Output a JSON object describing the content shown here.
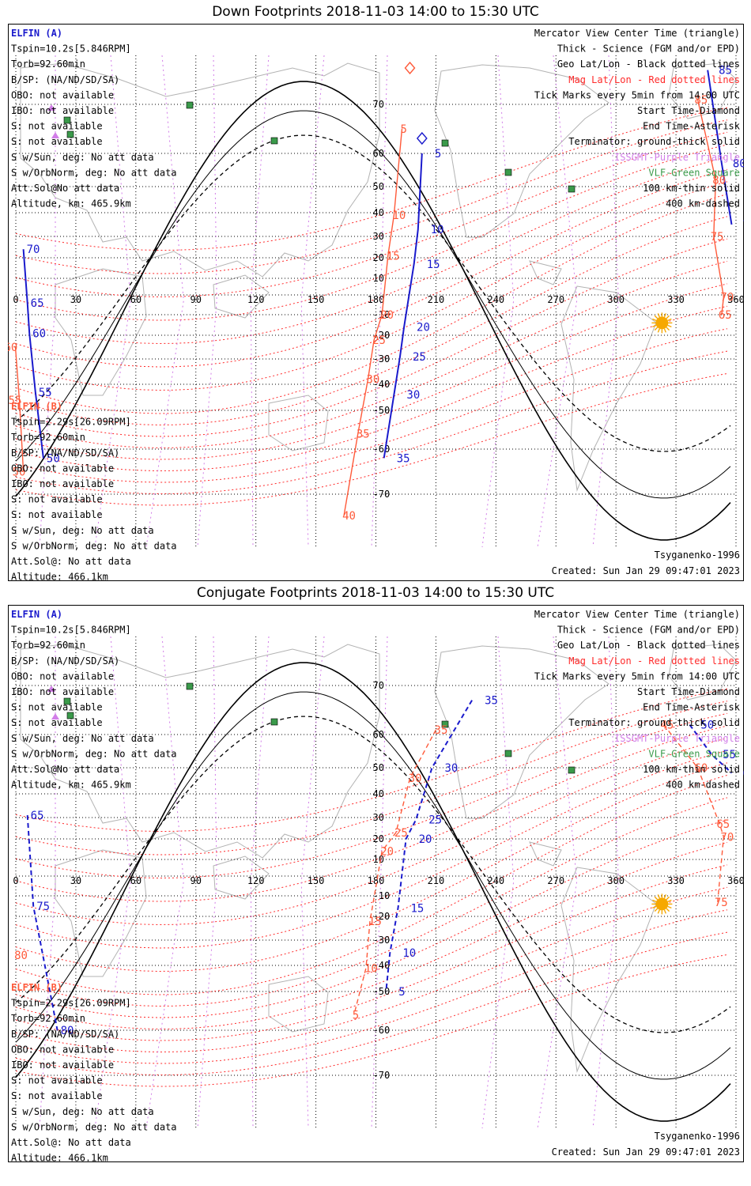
{
  "colors": {
    "blue": "#1a1acc",
    "red": "#ff5a3a",
    "grid_red": "#ff2a2a",
    "purple": "#d27ee8",
    "green": "#3a9a4a",
    "sun": "#f6a800",
    "land": "#b3b3b3"
  },
  "legend_right": [
    {
      "text": "Mercator View Center Time (triangle)",
      "color": "#000000"
    },
    {
      "text": "Thick - Science (FGM and/or EPD)",
      "color": "#000000"
    },
    {
      "text": "Geo Lat/Lon - Black dotted lines",
      "color": "#000000"
    },
    {
      "text": "Mag Lat/Lon - Red dotted lines",
      "color": "#ff2a2a"
    },
    {
      "text": "Tick Marks every 5min from 14:00 UTC",
      "color": "#000000"
    },
    {
      "text": "Start Time-Diamond",
      "color": "#000000"
    },
    {
      "text": "End Time-Asterisk",
      "color": "#000000"
    },
    {
      "text": "Terminator: ground-thick solid",
      "color": "#000000"
    },
    {
      "text": "ISSGMT-Purple Triangle",
      "color": "#d27ee8"
    },
    {
      "text": "VLF-Green Square",
      "color": "#3a9a4a"
    },
    {
      "text": "100 km-thin solid",
      "color": "#000000"
    },
    {
      "text": "400 km-dashed",
      "color": "#000000"
    }
  ],
  "elfin_a": {
    "name": "ELFIN (A)",
    "lines": [
      "Tspin=10.2s[5.846RPM]",
      "Torb=92.60min",
      "B/SP: (NA/ND/SD/SA)",
      "OBO: not available",
      "IBO: not available",
      "S: not available",
      "S: not available",
      "S w/Sun, deg: No att data",
      "S w/OrbNorm, deg: No att data",
      "Att.Sol@No att data",
      "Altitude, km: 465.9km"
    ]
  },
  "elfin_b": {
    "name": "ELFIN (B)",
    "lines": [
      "Tspin=2.29s[26.09RPM]",
      "Torb=92.60min",
      "B/SP: (NA/ND/SD/SA)",
      "OBO: not available",
      "IBO: not available",
      "S: not available",
      "S: not available",
      "S w/Sun, deg: No att data",
      "S w/OrbNorm, deg: No att data",
      "Att.Sol@: No att data",
      "Altitude: 466.1km"
    ]
  },
  "model": "Tsyganenko-1996",
  "created": "Created: Sun Jan 29 09:47:01 2023",
  "lon_ticks": [
    0,
    30,
    60,
    90,
    120,
    150,
    180,
    210,
    240,
    270,
    300,
    330,
    360
  ],
  "lat_ticks": [
    70,
    60,
    50,
    40,
    30,
    20,
    10,
    -10,
    -20,
    -30,
    -40,
    -50,
    -60,
    -70
  ],
  "chart_data": [
    {
      "type": "scatter",
      "title": "Down Footprints 2018-11-03 14:00 to 15:30 UTC",
      "xlabel": "",
      "ylabel": "",
      "xlim": [
        0,
        360
      ],
      "ylim": [
        -80,
        80
      ],
      "series": [
        {
          "name": "ELFIN (A)",
          "color": "#1a1acc",
          "labels": [
            {
              "text": "5",
              "lon": 207,
              "lat": 60
            },
            {
              "text": "10",
              "lon": 205,
              "lat": 33
            },
            {
              "text": "15",
              "lon": 203,
              "lat": 17
            },
            {
              "text": "20",
              "lon": 198,
              "lat": -16
            },
            {
              "text": "25",
              "lon": 196,
              "lat": -29
            },
            {
              "text": "30",
              "lon": 193,
              "lat": -44
            },
            {
              "text": "35",
              "lon": 188,
              "lat": -62
            },
            {
              "text": "85",
              "lon": 349,
              "lat": 77
            },
            {
              "text": "80",
              "lon": 356,
              "lat": 57
            },
            {
              "text": "75",
              "lon": 361,
              "lat": 35
            },
            {
              "text": "70",
              "lon": 3,
              "lat": 24
            },
            {
              "text": "65",
              "lon": 5,
              "lat": -4
            },
            {
              "text": "60",
              "lon": 6,
              "lat": -19
            },
            {
              "text": "55",
              "lon": 9,
              "lat": -43
            },
            {
              "text": "50",
              "lon": 13,
              "lat": -62
            }
          ]
        },
        {
          "name": "ELFIN (B)",
          "color": "#ff5a3a",
          "labels": [
            {
              "text": "5",
              "lon": 197,
              "lat": 65
            },
            {
              "text": "10",
              "lon": 193,
              "lat": 39
            },
            {
              "text": "15",
              "lon": 190,
              "lat": 21
            },
            {
              "text": "20",
              "lon": 187,
              "lat": -10
            },
            {
              "text": "25",
              "lon": 183,
              "lat": -22
            },
            {
              "text": "30",
              "lon": 180,
              "lat": -38
            },
            {
              "text": "35",
              "lon": 175,
              "lat": -56
            },
            {
              "text": "40",
              "lon": 168,
              "lat": -74
            },
            {
              "text": "85",
              "lon": 344,
              "lat": 71
            },
            {
              "text": "80",
              "lon": 353,
              "lat": 52
            },
            {
              "text": "75",
              "lon": 352,
              "lat": 30
            },
            {
              "text": "70",
              "lon": 357,
              "lat": -1
            },
            {
              "text": "65",
              "lon": 356,
              "lat": -10
            },
            {
              "text": "60",
              "lon": -1,
              "lat": -25
            },
            {
              "text": "55",
              "lon": 1,
              "lat": -46
            },
            {
              "text": "50",
              "lon": 3,
              "lat": -65
            }
          ]
        }
      ]
    },
    {
      "type": "scatter",
      "title": "Conjugate Footprints 2018-11-03 14:00 to 15:30 UTC",
      "xlabel": "",
      "ylabel": "",
      "xlim": [
        0,
        360
      ],
      "ylim": [
        -80,
        80
      ],
      "series": [
        {
          "name": "ELFIN (A)",
          "color": "#1a1acc",
          "labels": [
            {
              "text": "5",
              "lon": 189,
              "lat": -50
            },
            {
              "text": "10",
              "lon": 191,
              "lat": -35
            },
            {
              "text": "15",
              "lon": 195,
              "lat": -16
            },
            {
              "text": "20",
              "lon": 199,
              "lat": 20
            },
            {
              "text": "25",
              "lon": 204,
              "lat": 29
            },
            {
              "text": "30",
              "lon": 212,
              "lat": 50
            },
            {
              "text": "35",
              "lon": 232,
              "lat": 67
            },
            {
              "text": "50",
              "lon": 340,
              "lat": 62
            },
            {
              "text": "55",
              "lon": 351,
              "lat": 54
            },
            {
              "text": "60",
              "lon": 361,
              "lat": 48
            },
            {
              "text": "65",
              "lon": 5,
              "lat": 31
            },
            {
              "text": "75",
              "lon": 8,
              "lat": -15
            },
            {
              "text": "80",
              "lon": 20,
              "lat": -60
            }
          ]
        },
        {
          "name": "ELFIN (B)",
          "color": "#ff5a3a",
          "labels": [
            {
              "text": "5",
              "lon": 173,
              "lat": -56
            },
            {
              "text": "10",
              "lon": 179,
              "lat": -41
            },
            {
              "text": "15",
              "lon": 181,
              "lat": -22
            },
            {
              "text": "20",
              "lon": 187,
              "lat": 14
            },
            {
              "text": "25",
              "lon": 194,
              "lat": 23
            },
            {
              "text": "30",
              "lon": 201,
              "lat": 46
            },
            {
              "text": "35",
              "lon": 214,
              "lat": 61
            },
            {
              "text": "45",
              "lon": 327,
              "lat": 62
            },
            {
              "text": "60",
              "lon": 344,
              "lat": 50
            },
            {
              "text": "65",
              "lon": 355,
              "lat": 27
            },
            {
              "text": "70",
              "lon": 357,
              "lat": 21
            },
            {
              "text": "75",
              "lon": 354,
              "lat": -13
            },
            {
              "text": "80",
              "lon": 4,
              "lat": -36
            }
          ]
        }
      ]
    }
  ]
}
